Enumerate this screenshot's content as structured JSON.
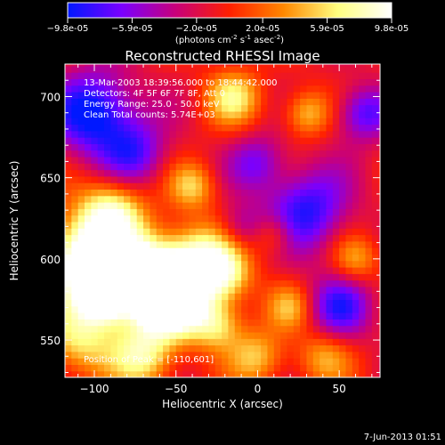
{
  "chart_data": {
    "type": "heatmap",
    "title": "Reconstructed RHESSI Image",
    "xlabel": "Heliocentric X (arcsec)",
    "ylabel": "Heliocentric Y (arcsec)",
    "xlim": [
      -118,
      75
    ],
    "ylim": [
      527,
      720
    ],
    "x_ticks": [
      -100,
      -50,
      0,
      50
    ],
    "y_ticks": [
      550,
      600,
      650,
      700
    ],
    "colorbar": {
      "min": -9.8e-05,
      "max": 9.8e-05,
      "tick_labels": [
        "-9.8e-05",
        "-5.9e-05",
        "-2.0e-05",
        "2.0e-05",
        "5.9e-05",
        "9.8e-05"
      ],
      "unit_label": "(photons cm-2 s-1 asec-2)",
      "colors": [
        "#0018ff",
        "#7a00ff",
        "#c8007a",
        "#ff2000",
        "#ff8800",
        "#ffff80",
        "#ffffff"
      ]
    },
    "annotations": {
      "time_range": "13-Mar-2003 18:39:56.000 to 18:44:42.000",
      "detectors": "Detectors: 4F 5F 6F 7F 8F, Att 0",
      "energy": "Energy Range: 25.0 - 50.0 keV",
      "clean": "Clean    Total counts: 5.74E+03",
      "peak": "Position of Peak = [-110,601]"
    },
    "footer_date": "7-Jun-2013 01:51",
    "grid": false
  }
}
